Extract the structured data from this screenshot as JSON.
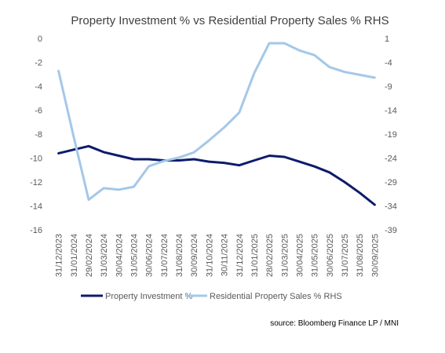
{
  "chart_data": {
    "type": "line",
    "title": "Property Investment % vs Residential Property Sales %  RHS",
    "source": "source: Bloomberg Finance LP / MNI",
    "x": [
      "31/12/2023",
      "31/01/2024",
      "29/02/2024",
      "31/03/2024",
      "30/04/2024",
      "31/05/2024",
      "30/06/2024",
      "31/07/2024",
      "31/08/2024",
      "30/09/2024",
      "31/10/2024",
      "30/11/2024",
      "31/12/2024",
      "31/01/2025",
      "28/02/2025",
      "31/03/2025",
      "30/04/2025",
      "31/05/2025",
      "30/06/2025",
      "31/07/2025",
      "31/08/2025",
      "30/09/2025"
    ],
    "left_axis": {
      "ylim": [
        -16,
        0
      ],
      "ticks": [
        0,
        -2,
        -4,
        -6,
        -8,
        -10,
        -12,
        -14,
        -16
      ]
    },
    "right_axis": {
      "ylim": [
        -39,
        1
      ],
      "ticks": [
        1,
        -4,
        -9,
        -14,
        -19,
        -24,
        -29,
        -34,
        -39
      ]
    },
    "series": [
      {
        "name": "Property Investment %",
        "axis": "left",
        "color": "#0d1b6b",
        "values": [
          -9.6,
          -9.3,
          -9.0,
          -9.5,
          -9.8,
          -10.1,
          -10.1,
          -10.2,
          -10.2,
          -10.1,
          -10.3,
          -10.4,
          -10.6,
          -10.2,
          -9.8,
          -9.9,
          -10.3,
          -10.7,
          -11.2,
          -12.0,
          -12.9,
          -13.9
        ]
      },
      {
        "name": "Residential Property Sales % RHS",
        "axis": "right",
        "color": "#a4c8e8",
        "values": [
          -5.8,
          -19.5,
          -32.7,
          -30.3,
          -30.6,
          -30.0,
          -25.7,
          -24.6,
          -23.9,
          -22.8,
          -20.3,
          -17.6,
          -14.5,
          -6.2,
          0.0,
          0.0,
          -1.5,
          -2.5,
          -5.0,
          -6.0,
          -6.6,
          -7.2
        ]
      }
    ]
  }
}
